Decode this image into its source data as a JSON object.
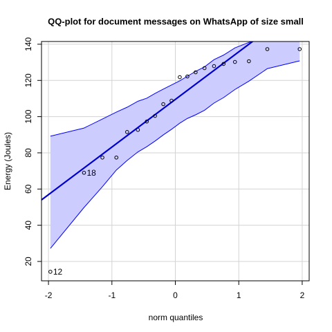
{
  "chart_data": {
    "type": "qq",
    "title": "QQ-plot for document messages on WhatsApp of size small",
    "x_label": "norm quantiles",
    "y_label": "Energy (Joules)",
    "x": [
      -1.97,
      -1.44,
      -1.15,
      -0.93,
      -0.76,
      -0.59,
      -0.45,
      -0.32,
      -0.19,
      -0.06,
      0.07,
      0.19,
      0.32,
      0.46,
      0.61,
      0.76,
      0.94,
      1.16,
      1.45,
      1.96
    ],
    "values": [
      14.3,
      69,
      77.4,
      77.4,
      91.5,
      92.7,
      97.3,
      100.4,
      106.9,
      108.8,
      121.8,
      122.2,
      124.5,
      126.8,
      127.9,
      129.1,
      130.2,
      130.6,
      137.3,
      137.3
    ],
    "point_labels": [
      "12",
      "18",
      null,
      null,
      null,
      null,
      null,
      null,
      null,
      null,
      null,
      null,
      null,
      null,
      null,
      null,
      null,
      null,
      null,
      null
    ],
    "envelope_upper": [
      89.2,
      93.7,
      98.7,
      102.5,
      105.2,
      108.5,
      110.2,
      112.8,
      115.2,
      117.5,
      119.8,
      122.3,
      125,
      127.5,
      131.5,
      134,
      138,
      141,
      145,
      149
    ],
    "envelope_lower": [
      27.2,
      49.8,
      61.3,
      70.5,
      75.8,
      80.5,
      83.4,
      86.5,
      89.9,
      93,
      96.4,
      99,
      101,
      103.5,
      107.5,
      110.5,
      115,
      119.6,
      126.5,
      130.8
    ],
    "fit_line": {
      "intercept": 109.5,
      "slope": 26.3
    },
    "line_color": "#0000cd",
    "envelope_color": "#0000ff",
    "envelope_fill": "#ccccff",
    "xlim": [
      -2.11,
      2.11
    ],
    "ylim": [
      9.3,
      141.5
    ],
    "xticks": [
      -2,
      -1,
      0,
      1,
      2
    ],
    "yticks": [
      20,
      40,
      60,
      80,
      100,
      120,
      140
    ],
    "grid": true
  }
}
